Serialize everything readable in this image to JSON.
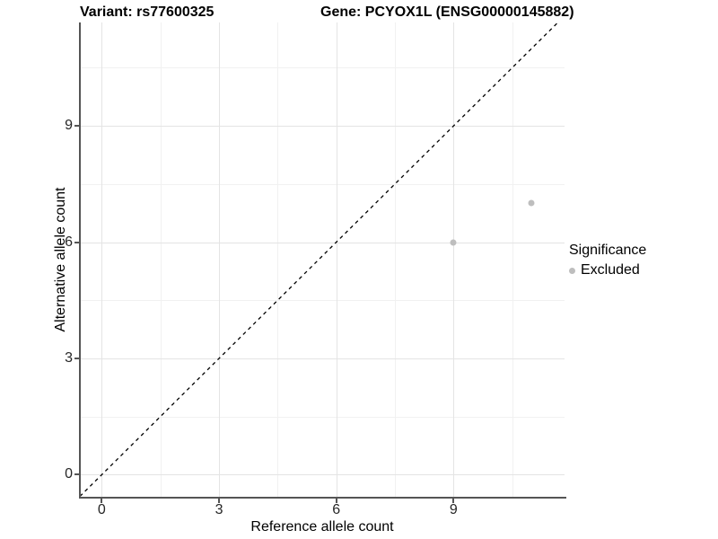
{
  "title": {
    "variant": "Variant: rs77600325",
    "gene": "Gene: PCYOX1L (ENSG00000145882)"
  },
  "chart_data": {
    "type": "scatter",
    "title_left": "Variant: rs77600325",
    "title_right": "Gene: PCYOX1L (ENSG00000145882)",
    "xlabel": "Reference allele count",
    "ylabel": "Alternative allele count",
    "xlim": [
      -0.56,
      11.84
    ],
    "ylim": [
      -0.57,
      11.67
    ],
    "x_ticks": [
      0,
      3,
      6,
      9
    ],
    "y_ticks": [
      0,
      3,
      6,
      9
    ],
    "x_minor_ticks": [
      1.5,
      4.5,
      7.5,
      10.5
    ],
    "y_minor_ticks": [
      1.5,
      4.5,
      7.5,
      10.5
    ],
    "grid": true,
    "series": [
      {
        "name": "Excluded",
        "color": "#bebebe",
        "point_diameter": 7,
        "points": [
          {
            "x": 9,
            "y": 6
          },
          {
            "x": 11,
            "y": 7
          }
        ]
      }
    ],
    "reference_line": {
      "type": "identity",
      "style": "dashed",
      "color": "#000000"
    },
    "legend": {
      "title": "Significance",
      "position": "right",
      "items": [
        {
          "label": "Excluded",
          "color": "#bebebe"
        }
      ]
    }
  },
  "colors": {
    "background": "#ffffff",
    "grid_major": "#e4e4e4",
    "grid_minor": "#f1f1f1",
    "axis_line": "#555555",
    "tick_text": "#262626",
    "point": "#bebebe"
  }
}
